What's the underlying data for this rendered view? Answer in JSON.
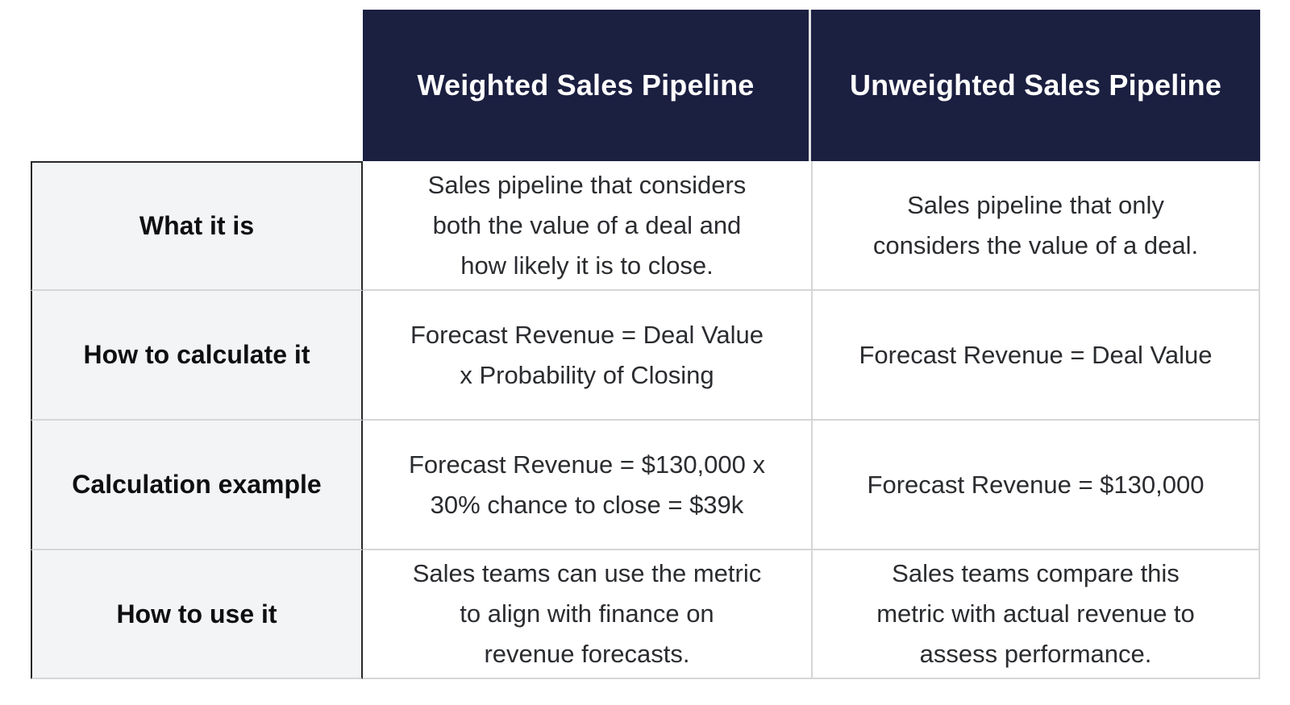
{
  "colors": {
    "header_bg": "#1b1f40",
    "header_text": "#ffffff",
    "label_bg": "#f3f4f6",
    "label_text": "#0f0f12",
    "body_text": "#2a2c2f",
    "dark_border": "#28282b",
    "light_border": "#d6d6d8",
    "header_divider": "#dfdfe2"
  },
  "table": {
    "column_headers": [
      {
        "label": "Weighted Sales Pipeline"
      },
      {
        "label": "Unweighted Sales Pipeline"
      }
    ],
    "rows": [
      {
        "label": "What it is",
        "weighted": "Sales pipeline that considers\nboth the value of a deal and\nhow likely it is to close.",
        "unweighted": "Sales pipeline that only\nconsiders the value of a deal."
      },
      {
        "label": "How to calculate it",
        "weighted": "Forecast Revenue = Deal Value\nx Probability of Closing",
        "unweighted": "Forecast Revenue = Deal Value"
      },
      {
        "label": "Calculation example",
        "weighted": "Forecast Revenue = $130,000 x\n30% chance to close = $39k",
        "unweighted": "Forecast Revenue = $130,000"
      },
      {
        "label": "How to use it",
        "weighted": "Sales teams can use the metric\nto align with finance on\nrevenue forecasts.",
        "unweighted": "Sales teams compare this\nmetric with actual revenue to\nassess performance."
      }
    ]
  }
}
